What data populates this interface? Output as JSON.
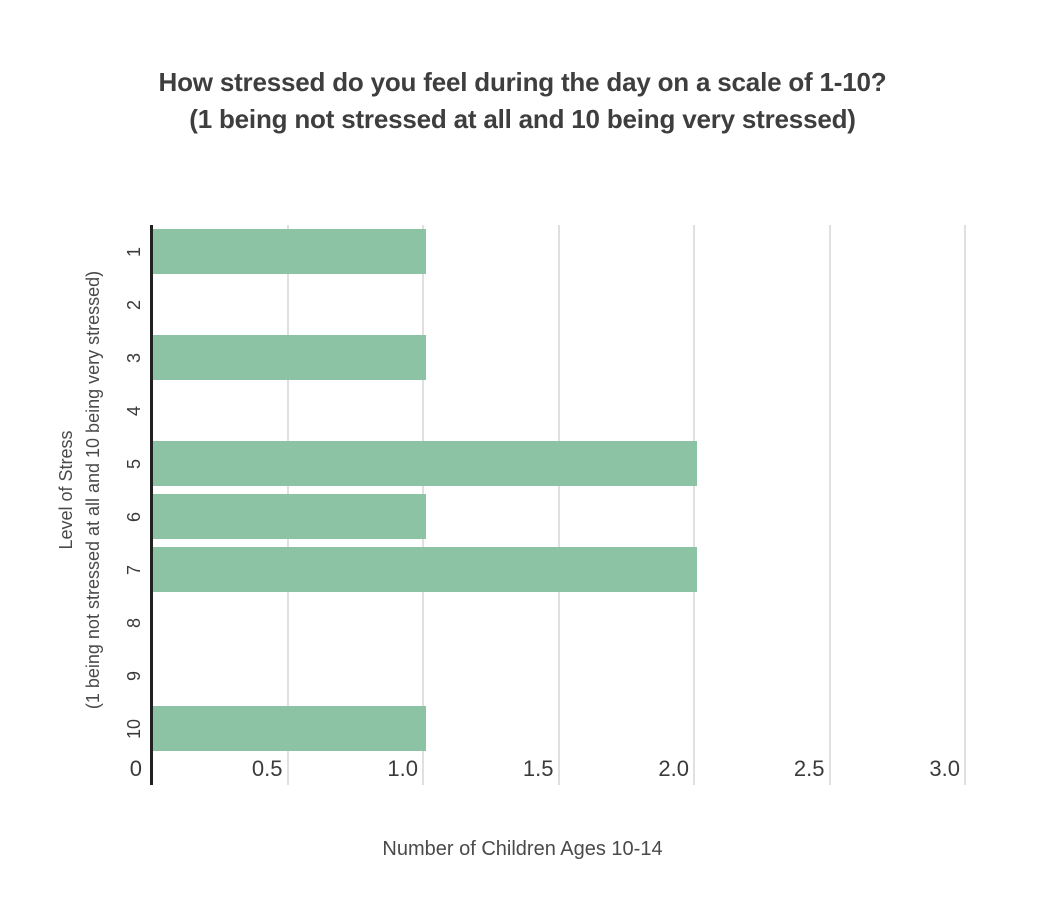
{
  "page": {
    "background": "#ffffff"
  },
  "title": {
    "line1": "How stressed do you feel during the day on a scale of 1-10?",
    "line2": "(1 being not stressed at all and 10 being very stressed)"
  },
  "chart_data": {
    "type": "bar",
    "orientation": "horizontal",
    "title": "How stressed do you feel during the day on a scale of 1-10? (1 being not stressed at all and 10 being very stressed)",
    "categories": [
      "1",
      "2",
      "3",
      "4",
      "5",
      "6",
      "7",
      "8",
      "9",
      "10"
    ],
    "values": [
      1,
      0,
      1,
      0,
      2,
      1,
      2,
      0,
      0,
      1
    ],
    "xlabel": "Number of Children Ages 10-14",
    "ylabel_line1": "Level of Stress",
    "ylabel_line2": "(1 being not stressed at all and 10 being very stressed)",
    "xlim": [
      0,
      3
    ],
    "x_tick_labels": [
      "0",
      "0.5",
      "1.0",
      "1.5",
      "2.0",
      "2.5",
      "3.0"
    ],
    "x_tick_values": [
      0,
      0.5,
      1,
      1.5,
      2,
      2.5,
      3
    ],
    "grid": true,
    "legend_position": "none",
    "colors": {
      "bar": "#8dc3a5",
      "gridline": "#e0e0e0",
      "axis_line": "#212121",
      "title_text": "#3e3e3e",
      "tick_text": "#3a3a3a",
      "axis_title_text": "#4a4a4a"
    }
  }
}
